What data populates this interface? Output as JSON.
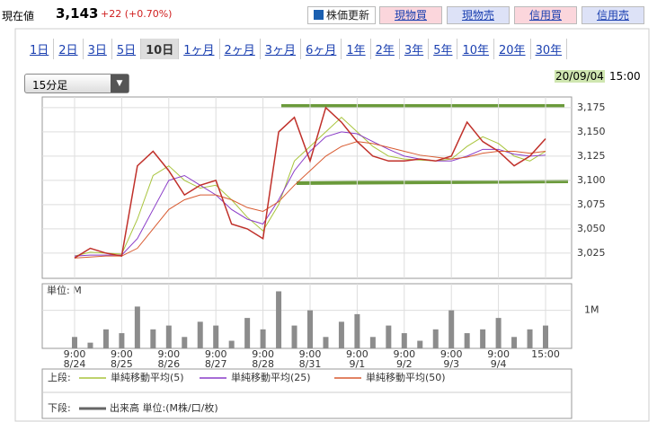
{
  "header": {
    "label": "現在値",
    "price": "3,143",
    "change": "+22 (+0.70%)",
    "refresh": "株価更新",
    "buttons": [
      "現物買",
      "現物売",
      "信用買",
      "信用売"
    ]
  },
  "tabs": [
    "1日",
    "2日",
    "3日",
    "5日",
    "10日",
    "1ヶ月",
    "2ヶ月",
    "3ヶ月",
    "6ヶ月",
    "1年",
    "2年",
    "3年",
    "5年",
    "10年",
    "20年",
    "30年"
  ],
  "active_tab": "10日",
  "select": "15分足",
  "datetime": {
    "date": "20/09/04",
    "time": "15:00"
  },
  "chart_data": [
    {
      "type": "line",
      "categories": [
        {
          "time": "9:00",
          "date": "8/24"
        },
        null,
        null,
        {
          "time": "9:00",
          "date": "8/25"
        },
        null,
        null,
        {
          "time": "9:00",
          "date": "8/26"
        },
        null,
        null,
        {
          "time": "9:00",
          "date": "8/27"
        },
        null,
        null,
        {
          "time": "9:00",
          "date": "8/28"
        },
        null,
        null,
        {
          "time": "9:00",
          "date": "8/31"
        },
        null,
        null,
        {
          "time": "9:00",
          "date": "9/1"
        },
        null,
        null,
        {
          "time": "9:00",
          "date": "9/2"
        },
        null,
        null,
        {
          "time": "9:00",
          "date": "9/3"
        },
        null,
        null,
        {
          "time": "9:00",
          "date": "9/4"
        },
        null,
        null,
        {
          "time": "15:00",
          "date": null
        }
      ],
      "ylim": [
        2999,
        3186
      ],
      "yticks": [
        {
          "value": 3025,
          "label": "3,025"
        },
        {
          "value": 3050,
          "label": "3,050"
        },
        {
          "value": 3075,
          "label": "3,075"
        },
        {
          "value": 3100,
          "label": "3,100"
        },
        {
          "value": 3125,
          "label": "3,125"
        },
        {
          "value": 3150,
          "label": "3,150"
        },
        {
          "value": 3175,
          "label": "3,175"
        }
      ],
      "grid": true,
      "price": {
        "color": "#c0302a",
        "values": [
          3020,
          3030,
          3025,
          3022,
          3115,
          3130,
          3110,
          3085,
          3095,
          3100,
          3055,
          3050,
          3040,
          3150,
          3165,
          3120,
          3175,
          3160,
          3140,
          3125,
          3120,
          3120,
          3122,
          3120,
          3125,
          3160,
          3140,
          3130,
          3115,
          3125,
          3143
        ]
      },
      "series": [
        {
          "name": "単純移動平均(5)",
          "color": "#a8c43c",
          "values": [
            3022,
            3026,
            3025,
            3024,
            3060,
            3105,
            3115,
            3100,
            3092,
            3095,
            3080,
            3062,
            3048,
            3075,
            3120,
            3135,
            3150,
            3165,
            3150,
            3135,
            3125,
            3122,
            3121,
            3120,
            3122,
            3135,
            3145,
            3138,
            3125,
            3120,
            3130
          ]
        },
        {
          "name": "単純移動平均(25)",
          "color": "#8a3cc8",
          "values": [
            3022,
            3023,
            3023,
            3023,
            3040,
            3070,
            3100,
            3105,
            3095,
            3085,
            3070,
            3060,
            3055,
            3080,
            3110,
            3130,
            3145,
            3150,
            3148,
            3140,
            3132,
            3125,
            3122,
            3120,
            3120,
            3125,
            3132,
            3132,
            3127,
            3125,
            3126
          ]
        },
        {
          "name": "単純移動平均(50)",
          "color": "#d85a30",
          "values": [
            3020,
            3021,
            3022,
            3022,
            3030,
            3050,
            3070,
            3080,
            3085,
            3085,
            3080,
            3072,
            3068,
            3078,
            3095,
            3110,
            3125,
            3135,
            3140,
            3138,
            3134,
            3130,
            3126,
            3124,
            3122,
            3124,
            3128,
            3130,
            3130,
            3128,
            3130
          ]
        }
      ]
    },
    {
      "type": "bar",
      "title": "単位: M",
      "ylim": [
        0,
        1.7
      ],
      "yticks": [
        {
          "value": 1,
          "label": "1M"
        }
      ],
      "color": "#8c8c8c",
      "values": [
        0.3,
        0.15,
        0.5,
        0.4,
        1.1,
        0.5,
        0.6,
        0.3,
        0.7,
        0.6,
        0.2,
        0.8,
        0.5,
        1.5,
        0.6,
        1.0,
        0.3,
        0.7,
        0.9,
        0.3,
        0.6,
        0.4,
        0.2,
        0.5,
        1.0,
        0.4,
        0.5,
        0.8,
        0.3,
        0.5,
        0.6
      ]
    }
  ],
  "legend": {
    "upper": "上段:",
    "lower": "下段:",
    "volume": "出来高 単位:(M株/口/枚)"
  }
}
